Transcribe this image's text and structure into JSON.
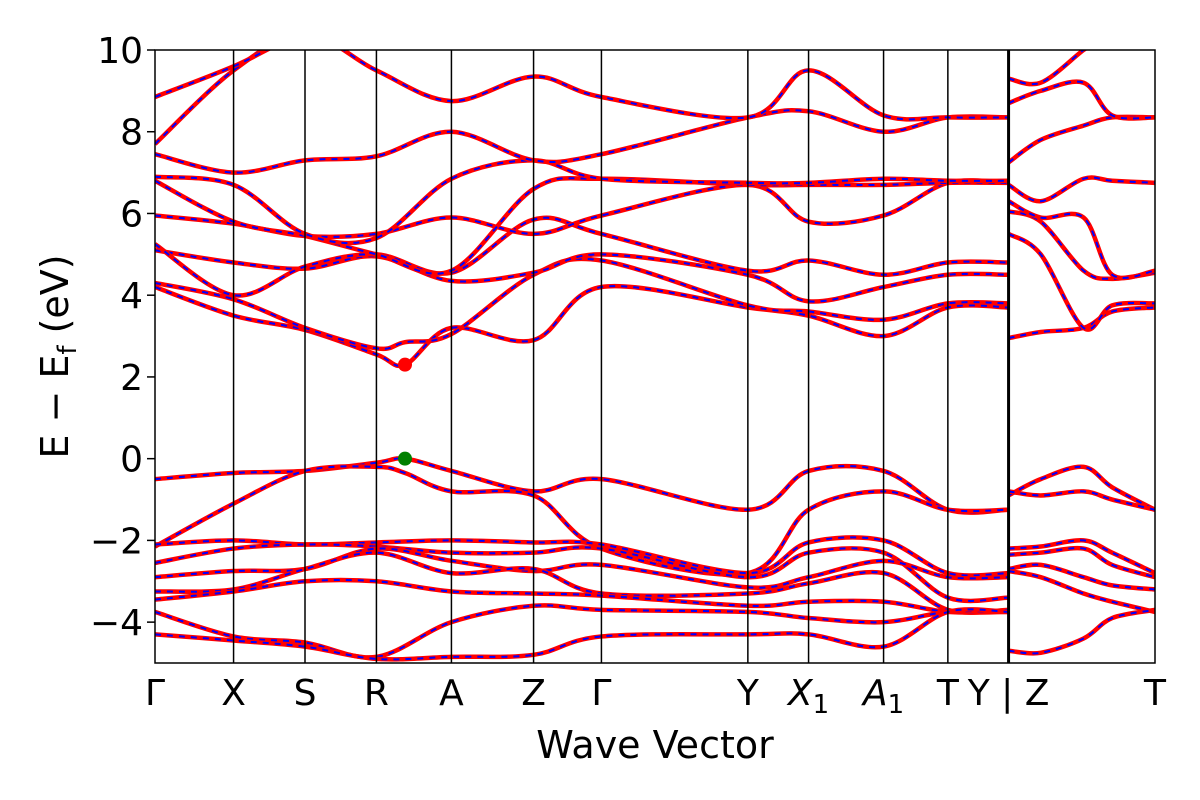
{
  "chart_data": {
    "type": "line",
    "title": "",
    "xlabel": "Wave Vector",
    "ylabel": "E − E",
    "ylabel_subscript": "f",
    "ylabel_unit": "(eV)",
    "ylim": [
      -5,
      10
    ],
    "yticks": [
      -4,
      -2,
      0,
      2,
      4,
      6,
      8,
      10
    ],
    "ytick_labels": [
      "−4",
      "−2",
      "0",
      "2",
      "4",
      "6",
      "8",
      "10"
    ],
    "xlim": [
      0,
      14.0
    ],
    "kpath": [
      {
        "label": "Γ",
        "sub": "",
        "x": 0.0,
        "break": false
      },
      {
        "label": "X",
        "sub": "",
        "x": 1.1,
        "break": false
      },
      {
        "label": "S",
        "sub": "",
        "x": 2.1,
        "break": false
      },
      {
        "label": "R",
        "sub": "",
        "x": 3.1,
        "break": false
      },
      {
        "label": "A",
        "sub": "",
        "x": 4.15,
        "break": false
      },
      {
        "label": "Z",
        "sub": "",
        "x": 5.3,
        "break": false
      },
      {
        "label": "Γ",
        "sub": "",
        "x": 6.25,
        "break": false
      },
      {
        "label": "Y",
        "sub": "",
        "x": 8.3,
        "break": false
      },
      {
        "label": "X",
        "sub": "1",
        "x": 9.15,
        "break": false
      },
      {
        "label": "A",
        "sub": "1",
        "x": 10.2,
        "break": false
      },
      {
        "label": "T",
        "sub": "",
        "x": 11.1,
        "break": false
      },
      {
        "label": "Y | Z",
        "sub": "",
        "x": 11.95,
        "break": true
      },
      {
        "label": "T",
        "sub": "",
        "x": 14.0,
        "break": false
      }
    ],
    "colors": {
      "band_spin_a": "#ff0000",
      "band_spin_b": "#0000ff",
      "vbm_marker": "#008000",
      "cbm_marker": "#ff0000",
      "kpath_line": "#000000"
    },
    "vbm": {
      "x": 3.5,
      "y": 0.0
    },
    "cbm": {
      "x": 3.5,
      "y": 2.3
    },
    "series": [
      {
        "x": [
          0,
          1.1,
          2.1,
          3.1,
          3.5,
          4.15,
          5.3,
          6.25,
          8.3,
          9.15,
          10.2,
          11.1,
          11.95
        ],
        "y": [
          -0.5,
          -0.35,
          -0.3,
          -0.1,
          0.0,
          -0.3,
          -0.8,
          -0.5,
          -1.25,
          -0.3,
          -0.3,
          -1.25,
          -1.25
        ]
      },
      {
        "x": [
          0,
          1.1,
          2.1,
          3.1,
          3.5,
          4.15,
          5.3,
          6.25,
          8.3,
          9.15,
          10.2,
          11.1,
          11.95
        ],
        "y": [
          -2.15,
          -1.1,
          -0.3,
          -0.2,
          -0.35,
          -0.8,
          -0.9,
          -2.2,
          -2.8,
          -1.25,
          -0.8,
          -1.25,
          -1.25
        ]
      },
      {
        "x": [
          0,
          1.1,
          2.1,
          3.1,
          4.15,
          5.3,
          6.25,
          8.3,
          9.15,
          10.2,
          11.1,
          11.95
        ],
        "y": [
          -2.1,
          -2.0,
          -2.1,
          -2.05,
          -2.0,
          -2.05,
          -2.1,
          -2.8,
          -2.05,
          -2.0,
          -2.8,
          -2.8
        ]
      },
      {
        "x": [
          0,
          1.1,
          2.1,
          3.1,
          4.15,
          5.3,
          6.25,
          8.3,
          9.15,
          10.2,
          11.1,
          11.95
        ],
        "y": [
          -2.55,
          -2.2,
          -2.1,
          -2.15,
          -2.3,
          -2.3,
          -2.2,
          -2.9,
          -2.3,
          -2.3,
          -3.4,
          -3.4
        ]
      },
      {
        "x": [
          0,
          1.1,
          2.1,
          3.1,
          4.15,
          5.3,
          6.25,
          8.3,
          9.15,
          10.2,
          11.1,
          11.95
        ],
        "y": [
          -2.9,
          -2.75,
          -2.7,
          -2.2,
          -2.5,
          -2.75,
          -2.6,
          -3.15,
          -2.9,
          -2.5,
          -2.9,
          -2.9
        ]
      },
      {
        "x": [
          0,
          1.1,
          2.1,
          3.1,
          4.15,
          5.3,
          6.25,
          8.3,
          9.15,
          10.2,
          11.1,
          11.95
        ],
        "y": [
          -3.25,
          -3.2,
          -2.7,
          -2.3,
          -2.8,
          -2.7,
          -3.3,
          -3.3,
          -3.05,
          -2.8,
          -3.7,
          -3.7
        ]
      },
      {
        "x": [
          0,
          1.1,
          2.1,
          3.1,
          4.15,
          5.3,
          6.25,
          8.3,
          9.15,
          10.2,
          11.1,
          11.95
        ],
        "y": [
          -3.45,
          -3.25,
          -3.0,
          -3.0,
          -3.25,
          -3.3,
          -3.35,
          -3.6,
          -3.5,
          -3.5,
          -3.75,
          -3.75
        ]
      },
      {
        "x": [
          0,
          1.1,
          2.1,
          3.1,
          4.15,
          5.3,
          6.25,
          8.3,
          9.15,
          10.2,
          11.1,
          11.95
        ],
        "y": [
          -3.75,
          -4.35,
          -4.5,
          -4.85,
          -4.0,
          -3.6,
          -3.7,
          -3.75,
          -3.9,
          -4.0,
          -3.75,
          -3.75
        ]
      },
      {
        "x": [
          0,
          1.1,
          2.1,
          3.1,
          4.15,
          5.3,
          6.25,
          8.3,
          9.15,
          10.2,
          11.1,
          11.95
        ],
        "y": [
          -4.3,
          -4.45,
          -4.6,
          -4.9,
          -4.85,
          -4.8,
          -4.35,
          -4.3,
          -4.3,
          -4.6,
          -3.75,
          -3.75
        ]
      },
      {
        "x": [
          0,
          1.1,
          2.1,
          3.1,
          3.5,
          4.15,
          5.3,
          6.25,
          8.3,
          9.15,
          10.2,
          11.1,
          11.95
        ],
        "y": [
          4.2,
          3.5,
          3.15,
          2.55,
          2.3,
          3.2,
          2.9,
          4.2,
          3.7,
          3.5,
          3.0,
          3.7,
          3.7
        ]
      },
      {
        "x": [
          0,
          1.1,
          2.1,
          3.1,
          3.5,
          4.15,
          5.3,
          6.25,
          8.3,
          9.15,
          10.2,
          11.1,
          11.95
        ],
        "y": [
          4.3,
          3.9,
          3.2,
          2.7,
          2.85,
          3.05,
          4.5,
          4.85,
          3.75,
          3.6,
          3.4,
          3.8,
          3.8
        ]
      },
      {
        "x": [
          0,
          1.1,
          2.1,
          3.1,
          4.15,
          5.3,
          6.25,
          8.3,
          9.15,
          10.2,
          11.1,
          11.95
        ],
        "y": [
          5.1,
          4.8,
          4.65,
          4.95,
          4.35,
          4.55,
          5.0,
          4.5,
          3.85,
          4.2,
          4.5,
          4.5
        ]
      },
      {
        "x": [
          0,
          1.1,
          2.1,
          3.1,
          4.15,
          5.3,
          6.25,
          8.3,
          9.15,
          10.2,
          11.1,
          11.95
        ],
        "y": [
          5.25,
          4.0,
          4.7,
          5.0,
          4.55,
          5.85,
          5.5,
          4.6,
          4.85,
          4.5,
          4.8,
          4.8
        ]
      },
      {
        "x": [
          0,
          1.1,
          2.1,
          3.1,
          4.15,
          5.3,
          6.25,
          8.3,
          9.15,
          10.2,
          11.1,
          11.95
        ],
        "y": [
          5.95,
          5.75,
          5.45,
          5.5,
          5.9,
          5.5,
          5.95,
          6.7,
          5.8,
          5.95,
          6.75,
          6.75
        ]
      },
      {
        "x": [
          0,
          1.1,
          2.1,
          3.1,
          4.15,
          5.3,
          6.25,
          8.3,
          9.15,
          10.2,
          11.1,
          11.95
        ],
        "y": [
          6.8,
          5.8,
          5.45,
          5.0,
          4.6,
          6.6,
          6.85,
          6.7,
          6.7,
          6.7,
          6.75,
          6.75
        ]
      },
      {
        "x": [
          0,
          1.1,
          2.1,
          3.1,
          4.15,
          5.3,
          6.25,
          8.3,
          9.15,
          10.2,
          11.1,
          11.95
        ],
        "y": [
          6.9,
          6.7,
          5.5,
          5.4,
          6.85,
          7.3,
          6.85,
          6.75,
          6.75,
          6.85,
          6.8,
          6.8
        ]
      },
      {
        "x": [
          0,
          1.1,
          2.1,
          3.1,
          4.15,
          5.3,
          6.25,
          8.3,
          9.15,
          10.2,
          11.1,
          11.95
        ],
        "y": [
          7.45,
          7.0,
          7.3,
          7.4,
          8.0,
          7.3,
          7.45,
          8.35,
          8.5,
          8.0,
          8.35,
          8.35
        ]
      },
      {
        "x": [
          0,
          1.1,
          2.1,
          3.1,
          4.15,
          5.3,
          6.25,
          8.3,
          9.15,
          10.2,
          11.1,
          11.95
        ],
        "y": [
          7.7,
          9.5,
          10.4,
          9.5,
          8.75,
          9.35,
          8.85,
          8.35,
          9.5,
          8.4,
          8.35,
          8.35
        ]
      },
      {
        "x": [
          0,
          1.1,
          2.1,
          3.1,
          4.15,
          5.3,
          6.25,
          8.3,
          9.15,
          10.2,
          11.1,
          11.95
        ],
        "y": [
          8.85,
          9.6,
          10.4,
          10.5,
          10.4,
          10.5,
          10.4,
          10.4,
          10.4,
          10.4,
          10.4,
          10.4
        ]
      },
      {
        "x": [
          11.95,
          12.4,
          13.0,
          13.4,
          14.0
        ],
        "y": [
          -0.9,
          -0.5,
          -0.2,
          -0.7,
          -1.25
        ]
      },
      {
        "x": [
          11.95,
          12.4,
          13.0,
          13.4,
          14.0
        ],
        "y": [
          -0.8,
          -0.9,
          -0.8,
          -1.0,
          -1.25
        ]
      },
      {
        "x": [
          11.95,
          12.4,
          13.0,
          13.4,
          14.0
        ],
        "y": [
          -2.2,
          -2.15,
          -2.0,
          -2.3,
          -2.8
        ]
      },
      {
        "x": [
          11.95,
          12.4,
          13.0,
          13.4,
          14.0
        ],
        "y": [
          -2.35,
          -2.3,
          -2.2,
          -2.6,
          -2.9
        ]
      },
      {
        "x": [
          11.95,
          12.4,
          13.0,
          13.4,
          14.0
        ],
        "y": [
          -2.7,
          -2.6,
          -2.9,
          -3.1,
          -3.2
        ]
      },
      {
        "x": [
          11.95,
          12.4,
          13.0,
          13.4,
          14.0
        ],
        "y": [
          -2.75,
          -2.9,
          -3.3,
          -3.5,
          -3.75
        ]
      },
      {
        "x": [
          11.95,
          12.4,
          13.0,
          13.4,
          14.0
        ],
        "y": [
          -4.7,
          -4.75,
          -4.4,
          -3.9,
          -3.7
        ]
      },
      {
        "x": [
          11.95,
          12.4,
          13.0,
          13.4,
          14.0
        ],
        "y": [
          2.95,
          3.1,
          3.2,
          3.6,
          3.7
        ]
      },
      {
        "x": [
          11.95,
          12.4,
          13.0,
          13.4,
          14.0
        ],
        "y": [
          5.5,
          5.0,
          3.2,
          3.75,
          3.8
        ]
      },
      {
        "x": [
          11.95,
          12.4,
          13.0,
          13.4,
          14.0
        ],
        "y": [
          6.05,
          5.8,
          4.6,
          4.4,
          4.55
        ]
      },
      {
        "x": [
          11.95,
          12.4,
          13.0,
          13.4,
          14.0
        ],
        "y": [
          6.3,
          5.9,
          5.9,
          4.5,
          4.6
        ]
      },
      {
        "x": [
          11.95,
          12.4,
          13.0,
          13.4,
          14.0
        ],
        "y": [
          6.7,
          6.3,
          6.85,
          6.8,
          6.75
        ]
      },
      {
        "x": [
          11.95,
          12.4,
          13.0,
          13.4,
          14.0
        ],
        "y": [
          7.25,
          7.8,
          8.15,
          8.35,
          8.35
        ]
      },
      {
        "x": [
          11.95,
          12.4,
          13.0,
          13.4,
          14.0
        ],
        "y": [
          8.7,
          9.0,
          9.2,
          8.4,
          8.35
        ]
      },
      {
        "x": [
          11.95,
          12.4,
          13.0,
          13.4,
          14.0
        ],
        "y": [
          9.3,
          9.2,
          10.0,
          10.5,
          10.5
        ]
      }
    ]
  }
}
